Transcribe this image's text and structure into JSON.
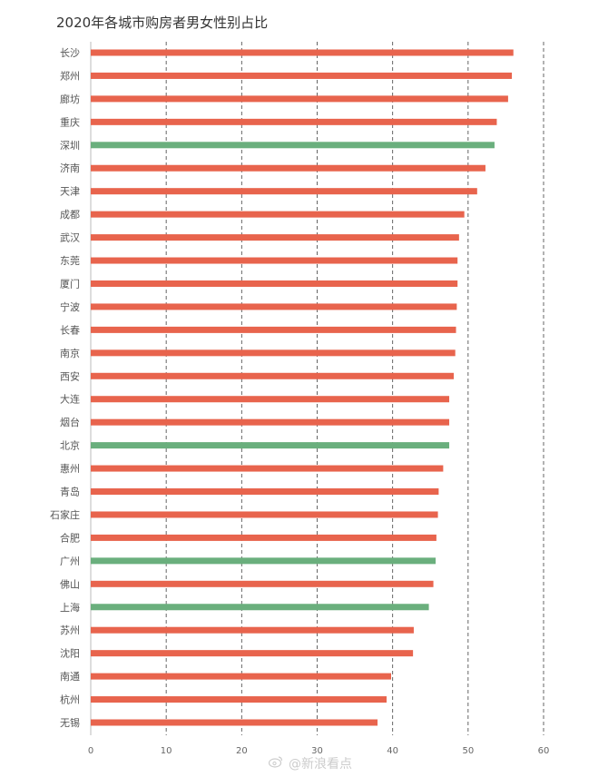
{
  "chart_data": {
    "type": "bar",
    "orientation": "horizontal",
    "title": "2020年各城市购房者男女性别占比",
    "xlabel": "",
    "ylabel": "",
    "xlim": [
      0,
      60
    ],
    "xticks": [
      0,
      10,
      20,
      30,
      40,
      50,
      60
    ],
    "grid": "vertical dashed",
    "categories": [
      "长沙",
      "郑州",
      "廊坊",
      "重庆",
      "深圳",
      "济南",
      "天津",
      "成都",
      "武汉",
      "东莞",
      "厦门",
      "宁波",
      "长春",
      "南京",
      "西安",
      "大连",
      "烟台",
      "北京",
      "惠州",
      "青岛",
      "石家庄",
      "合肥",
      "广州",
      "佛山",
      "上海",
      "苏州",
      "沈阳",
      "南通",
      "杭州",
      "无锡"
    ],
    "values": [
      56.0,
      55.8,
      55.3,
      53.8,
      53.5,
      52.3,
      51.2,
      49.5,
      48.8,
      48.6,
      48.6,
      48.5,
      48.4,
      48.3,
      48.1,
      47.5,
      47.5,
      47.5,
      46.7,
      46.1,
      46.0,
      45.8,
      45.7,
      45.4,
      44.8,
      42.8,
      42.7,
      39.8,
      39.2,
      38.0
    ],
    "bar_colors": [
      "#e8644d",
      "#e8644d",
      "#e8644d",
      "#e8644d",
      "#6aaf7d",
      "#e8644d",
      "#e8644d",
      "#e8644d",
      "#e8644d",
      "#e8644d",
      "#e8644d",
      "#e8644d",
      "#e8644d",
      "#e8644d",
      "#e8644d",
      "#e8644d",
      "#e8644d",
      "#6aaf7d",
      "#e8644d",
      "#e8644d",
      "#e8644d",
      "#e8644d",
      "#6aaf7d",
      "#e8644d",
      "#6aaf7d",
      "#e8644d",
      "#e8644d",
      "#e8644d",
      "#e8644d",
      "#e8644d"
    ]
  },
  "watermark": "@新浪看点"
}
